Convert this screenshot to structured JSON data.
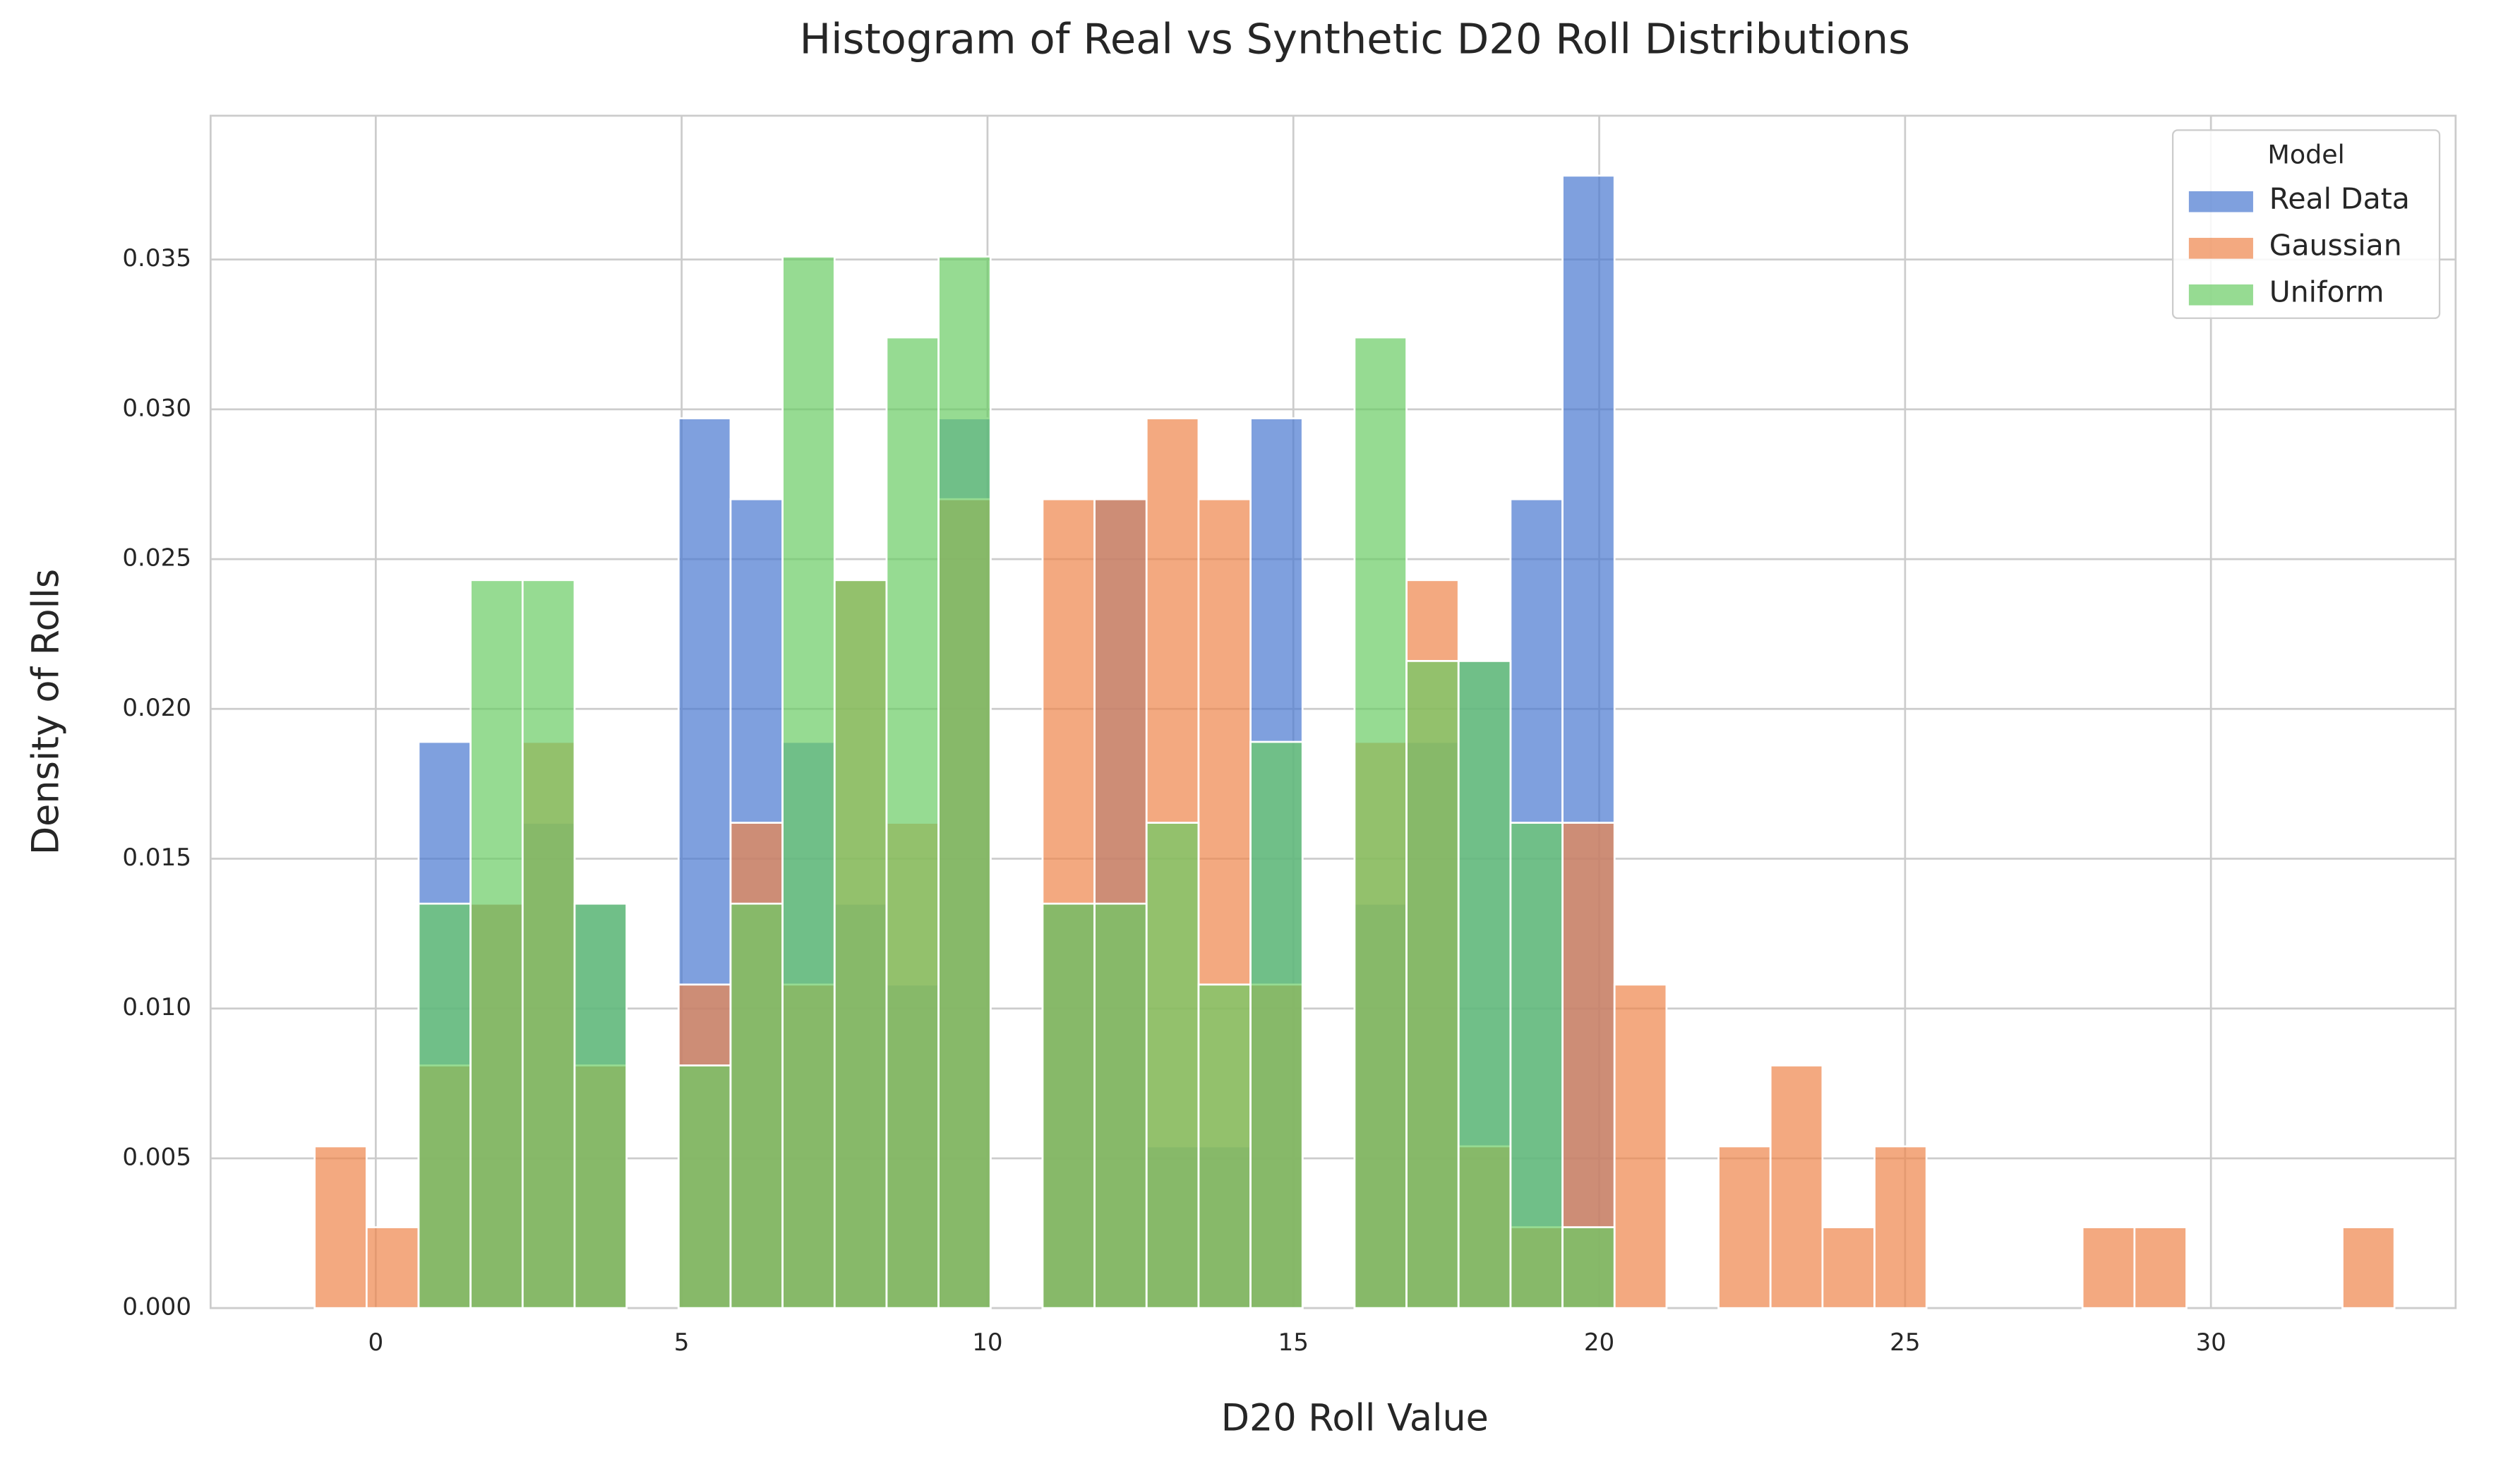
{
  "chart_data": {
    "type": "histogram",
    "title": "Histogram of Real vs Synthetic D20 Roll Distributions",
    "xlabel": "D20 Roll Value",
    "ylabel": "Density of Rolls",
    "bins": [
      -1,
      -0.15,
      0.7,
      1.55,
      2.4,
      3.25,
      4.1,
      4.95,
      5.8,
      6.65,
      7.5,
      8.35,
      9.2,
      10.05,
      10.9,
      11.75,
      12.6,
      13.45,
      14.3,
      15.15,
      16,
      16.85,
      17.7,
      18.55,
      19.4,
      20.25,
      21.1,
      21.95,
      22.8,
      23.65,
      24.5,
      25.35,
      26.2,
      27.05,
      27.9,
      28.75,
      29.6,
      30.45,
      31.3,
      32.15,
      33
    ],
    "series": [
      {
        "name": "Real Data",
        "color": "#4878d0",
        "values": [
          0,
          0,
          0.0189,
          0.0135,
          0.0162,
          0.0135,
          0,
          0.0297,
          0.027,
          0.0189,
          0.0135,
          0.0108,
          0.0297,
          0,
          0.0135,
          0.027,
          0.0054,
          0.0054,
          0.0297,
          0,
          0.0135,
          0.0189,
          0.0216,
          0.027,
          0.0378,
          0,
          0,
          0,
          0,
          0,
          0,
          0,
          0,
          0,
          0,
          0,
          0,
          0,
          0,
          0
        ]
      },
      {
        "name": "Gaussian",
        "color": "#ee854a",
        "values": [
          0.0054,
          0.0027,
          0.0081,
          0.0135,
          0.0189,
          0.0081,
          0,
          0.0108,
          0.0162,
          0.0108,
          0.0243,
          0.0162,
          0.027,
          0,
          0.027,
          0.027,
          0.0297,
          0.027,
          0.0108,
          0,
          0.0189,
          0.0243,
          0.0054,
          0.0027,
          0.0162,
          0.0108,
          0,
          0.0054,
          0.0081,
          0.0027,
          0.0054,
          0,
          0,
          0,
          0.0027,
          0.0027,
          0,
          0,
          0,
          0.0027
        ]
      },
      {
        "name": "Uniform",
        "color": "#6acc64",
        "values": [
          0,
          0,
          0.0135,
          0.0243,
          0.0243,
          0.0135,
          0,
          0.0081,
          0.0135,
          0.0351,
          0.0243,
          0.0324,
          0.0351,
          0,
          0.0135,
          0.0135,
          0.0162,
          0.0108,
          0.0189,
          0,
          0.0324,
          0.0216,
          0.0216,
          0.0162,
          0.0027,
          0,
          0,
          0,
          0,
          0,
          0,
          0,
          0,
          0,
          0,
          0,
          0,
          0,
          0,
          0
        ]
      }
    ],
    "xlim": [
      -2.7,
      34
    ],
    "ylim": [
      0,
      0.0398
    ],
    "xticks": [
      0,
      5,
      10,
      15,
      20,
      25,
      30
    ],
    "yticks": [
      {
        "value": 0,
        "label": "0.000"
      },
      {
        "value": 0.005,
        "label": "0.005"
      },
      {
        "value": 0.01,
        "label": "0.010"
      },
      {
        "value": 0.015,
        "label": "0.015"
      },
      {
        "value": 0.02,
        "label": "0.020"
      },
      {
        "value": 0.025,
        "label": "0.025"
      },
      {
        "value": 0.03,
        "label": "0.030"
      },
      {
        "value": 0.035,
        "label": "0.035"
      }
    ],
    "grid": true,
    "legend_title": "Model",
    "legend_loc": "upper right"
  }
}
